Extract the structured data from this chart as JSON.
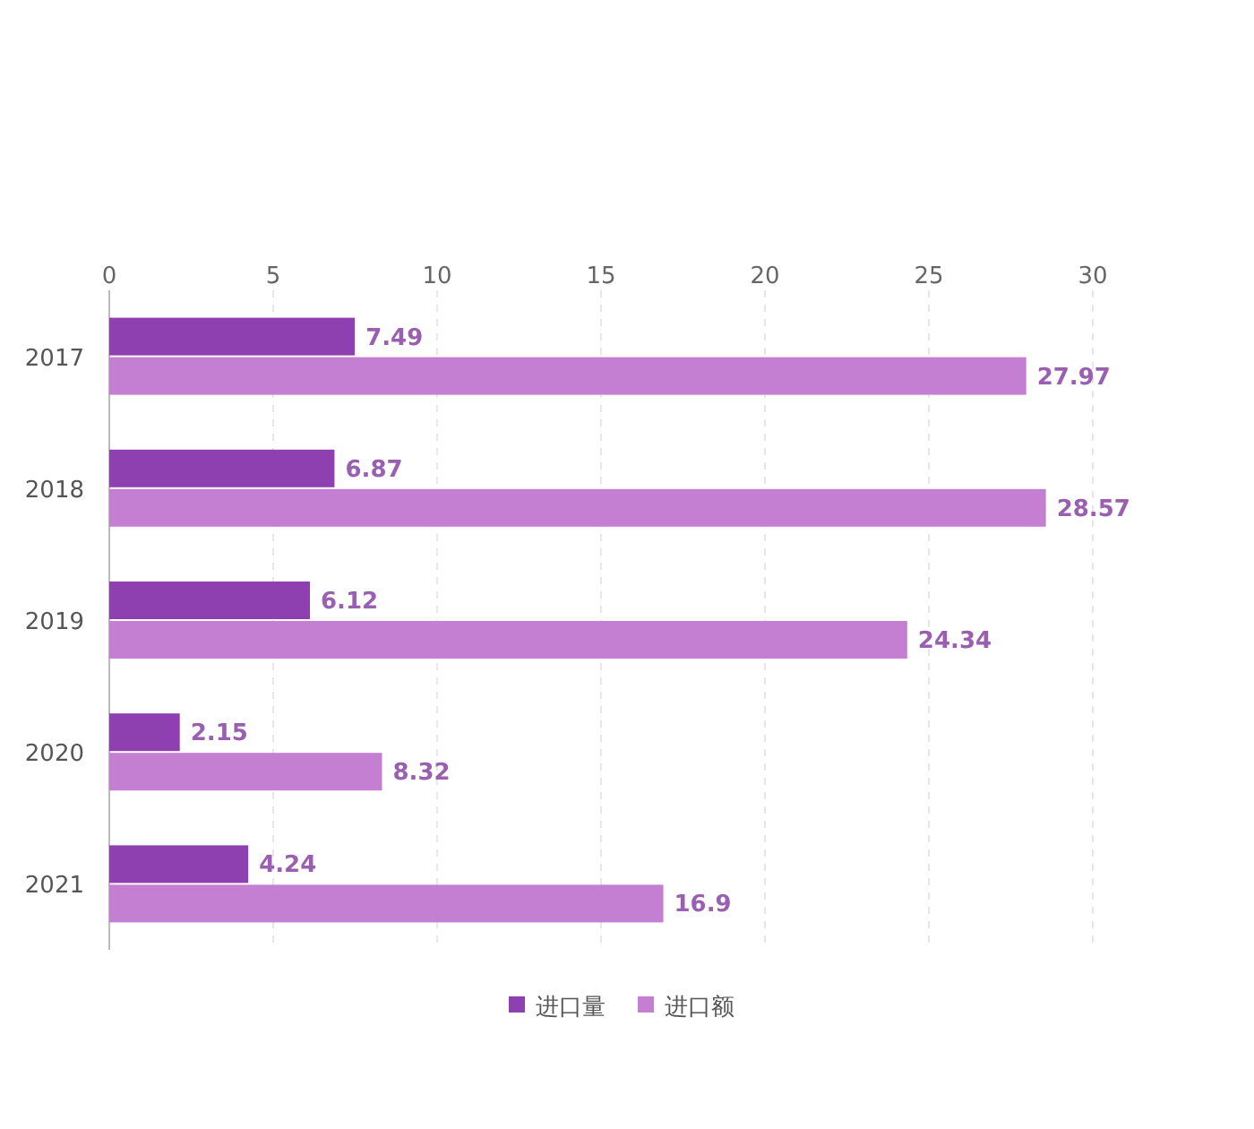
{
  "chart_data": {
    "type": "bar",
    "orientation": "horizontal",
    "categories": [
      "2017",
      "2018",
      "2019",
      "2020",
      "2021"
    ],
    "series": [
      {
        "name": "进口量",
        "color": "#8e3fb0",
        "values": [
          7.49,
          6.87,
          6.12,
          2.15,
          4.24
        ]
      },
      {
        "name": "进口额",
        "color": "#c47fd2",
        "values": [
          27.97,
          28.57,
          24.34,
          8.32,
          16.9
        ]
      }
    ],
    "data_labels": true,
    "xlim": [
      0,
      30
    ],
    "xticks": [
      0,
      5,
      10,
      15,
      20,
      25,
      30
    ],
    "grid": "x",
    "legend": "bottom"
  }
}
